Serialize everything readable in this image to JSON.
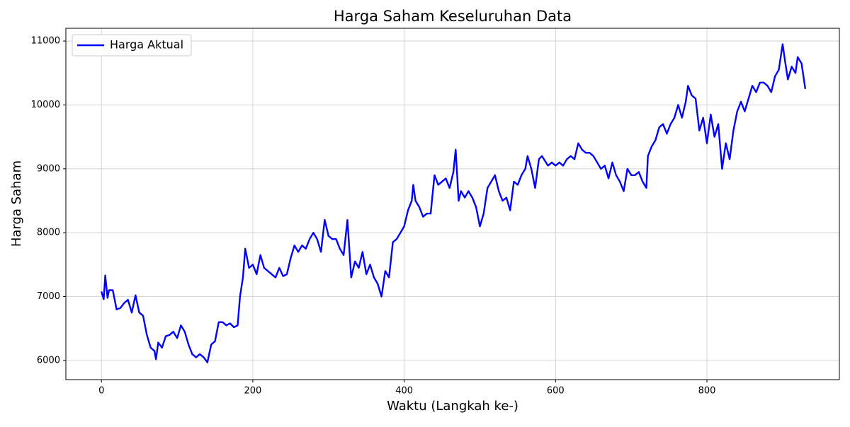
{
  "chart_data": {
    "type": "line",
    "title": "Harga Saham Keseluruhan Data",
    "x_label": "Waktu (Langkah ke-)",
    "y_label": "Harga Saham",
    "x": [
      0,
      3,
      5,
      8,
      10,
      15,
      20,
      25,
      30,
      35,
      40,
      45,
      50,
      55,
      60,
      65,
      70,
      72,
      75,
      80,
      85,
      90,
      95,
      100,
      105,
      110,
      115,
      120,
      125,
      130,
      135,
      140,
      145,
      150,
      155,
      160,
      165,
      170,
      175,
      180,
      183,
      187,
      190,
      195,
      200,
      205,
      210,
      215,
      220,
      225,
      230,
      235,
      240,
      245,
      250,
      255,
      260,
      265,
      270,
      275,
      280,
      285,
      290,
      295,
      300,
      305,
      310,
      315,
      320,
      325,
      330,
      335,
      340,
      345,
      350,
      355,
      360,
      365,
      370,
      375,
      380,
      385,
      390,
      395,
      400,
      405,
      410,
      412,
      415,
      420,
      425,
      430,
      435,
      440,
      445,
      450,
      455,
      460,
      465,
      468,
      472,
      475,
      480,
      485,
      490,
      495,
      500,
      505,
      510,
      515,
      520,
      525,
      530,
      535,
      540,
      545,
      550,
      555,
      560,
      563,
      568,
      573,
      578,
      582,
      590,
      595,
      600,
      605,
      610,
      615,
      620,
      625,
      630,
      635,
      640,
      645,
      650,
      655,
      660,
      665,
      670,
      675,
      680,
      685,
      690,
      695,
      700,
      705,
      710,
      715,
      720,
      722,
      727,
      732,
      737,
      742,
      747,
      752,
      757,
      762,
      767,
      772,
      775,
      780,
      785,
      790,
      795,
      800,
      805,
      810,
      815,
      820,
      825,
      830,
      835,
      840,
      845,
      850,
      855,
      860,
      865,
      870,
      875,
      880,
      885,
      890,
      895,
      900,
      903,
      907,
      912,
      917,
      920,
      925,
      930
    ],
    "series": [
      {
        "name": "Harga Aktual",
        "color": "#0000ff",
        "values": [
          7080,
          6960,
          7330,
          6980,
          7100,
          7100,
          6800,
          6820,
          6900,
          6950,
          6750,
          7020,
          6750,
          6700,
          6400,
          6200,
          6150,
          6020,
          6280,
          6200,
          6380,
          6400,
          6450,
          6350,
          6550,
          6450,
          6250,
          6100,
          6050,
          6100,
          6050,
          5970,
          6250,
          6300,
          6600,
          6600,
          6550,
          6580,
          6520,
          6550,
          7000,
          7300,
          7750,
          7450,
          7500,
          7350,
          7650,
          7450,
          7400,
          7350,
          7300,
          7450,
          7320,
          7350,
          7600,
          7800,
          7700,
          7800,
          7750,
          7900,
          8000,
          7900,
          7700,
          8200,
          7950,
          7900,
          7900,
          7750,
          7650,
          8200,
          7300,
          7550,
          7450,
          7700,
          7350,
          7500,
          7300,
          7200,
          7000,
          7400,
          7300,
          7850,
          7900,
          8000,
          8100,
          8350,
          8500,
          8750,
          8500,
          8400,
          8250,
          8300,
          8300,
          8900,
          8750,
          8800,
          8850,
          8700,
          8950,
          9300,
          8500,
          8650,
          8550,
          8650,
          8550,
          8400,
          8100,
          8300,
          8700,
          8800,
          8900,
          8650,
          8500,
          8550,
          8350,
          8800,
          8750,
          8900,
          9000,
          9200,
          9000,
          8700,
          9150,
          9200,
          9050,
          9100,
          9050,
          9100,
          9050,
          9150,
          9200,
          9150,
          9400,
          9300,
          9250,
          9250,
          9200,
          9100,
          9000,
          9050,
          8850,
          9100,
          8900,
          8800,
          8650,
          9000,
          8900,
          8900,
          8950,
          8800,
          8700,
          9200,
          9350,
          9450,
          9650,
          9700,
          9550,
          9700,
          9800,
          10000,
          9800,
          10050,
          10300,
          10150,
          10100,
          9600,
          9800,
          9400,
          9850,
          9500,
          9700,
          9000,
          9400,
          9150,
          9600,
          9900,
          10050,
          9900,
          10100,
          10300,
          10200,
          10350,
          10350,
          10300,
          10200,
          10450,
          10550,
          10950,
          10700,
          10400,
          10600,
          10500,
          10750,
          10650,
          10250
        ]
      }
    ],
    "xlim": [
      -47,
      975
    ],
    "ylim": [
      5700,
      11200
    ],
    "xticks": [
      0,
      200,
      400,
      600,
      800
    ],
    "yticks": [
      6000,
      7000,
      8000,
      9000,
      10000,
      11000
    ],
    "grid": true,
    "legend": "upper left"
  }
}
